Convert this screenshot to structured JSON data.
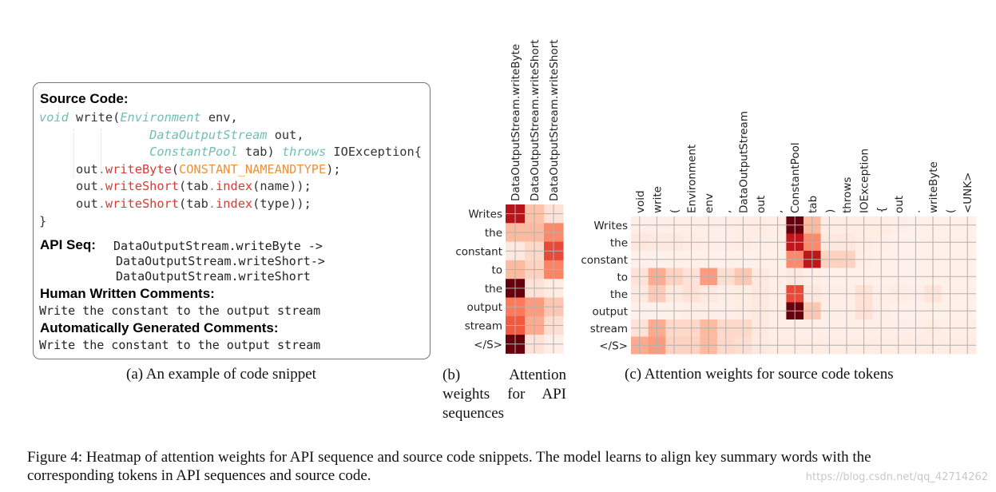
{
  "panel_a": {
    "source_code_label": "Source Code:",
    "code_lines": [
      [
        [
          "void",
          "kw"
        ],
        [
          " write(",
          "plain"
        ],
        [
          "Environment",
          "kw"
        ],
        [
          " env,",
          "plain"
        ]
      ],
      [
        [
          "               ",
          "plain"
        ],
        [
          "DataOutputStream",
          "kw"
        ],
        [
          " out,",
          "plain"
        ]
      ],
      [
        [
          "               ",
          "plain"
        ],
        [
          "ConstantPool",
          "kw"
        ],
        [
          " tab) ",
          "plain"
        ],
        [
          "throws",
          "kw"
        ],
        [
          " IOException{",
          "plain"
        ]
      ],
      [
        [
          "     out",
          "plain"
        ],
        [
          ".",
          "p"
        ],
        [
          "writeByte",
          "m"
        ],
        [
          "(",
          "plain"
        ],
        [
          "CONSTANT_NAMEANDTYPE",
          "c"
        ],
        [
          ");",
          "plain"
        ]
      ],
      [
        [
          "     out",
          "plain"
        ],
        [
          ".",
          "p"
        ],
        [
          "writeShort",
          "m"
        ],
        [
          "(tab",
          "plain"
        ],
        [
          ".",
          "p"
        ],
        [
          "index",
          "m"
        ],
        [
          "(name));",
          "plain"
        ]
      ],
      [
        [
          "     out",
          "plain"
        ],
        [
          ".",
          "p"
        ],
        [
          "writeShort",
          "m"
        ],
        [
          "(tab",
          "plain"
        ],
        [
          ".",
          "p"
        ],
        [
          "index",
          "m"
        ],
        [
          "(type));",
          "plain"
        ]
      ],
      [
        [
          "}",
          "plain"
        ]
      ]
    ],
    "api_seq_label": "API Seq:",
    "api_seq_lines": [
      "DataOutputStream.writeByte ->",
      "DataOutputStream.writeShort->",
      "DataOutputStream.writeShort"
    ],
    "human_label": "Human Written Comments:",
    "human_comment": "Write the constant to the output stream",
    "auto_label": "Automatically Generated Comments:",
    "auto_comment": "Write the constant to the output stream",
    "caption": "(a)  An example of code snippet"
  },
  "chart_data": [
    {
      "type": "heatmap",
      "caption": "(b)  Attention weights for API sequences",
      "x": [
        "DataOutputStream.writeByte",
        "DataOutputStream.writeShort",
        "DataOutputStream.writeShort"
      ],
      "y": [
        "Writes",
        "the",
        "constant",
        "to",
        "the",
        "output",
        "stream",
        "</S>"
      ],
      "values": [
        [
          0.8,
          0.22,
          0.08
        ],
        [
          0.25,
          0.25,
          0.4
        ],
        [
          0.05,
          0.12,
          0.6
        ],
        [
          0.25,
          0.15,
          0.42
        ],
        [
          1.0,
          0.08,
          0.04
        ],
        [
          0.45,
          0.35,
          0.2
        ],
        [
          0.55,
          0.3,
          0.1
        ],
        [
          1.0,
          0.08,
          0.03
        ]
      ],
      "colormap": "Reds"
    },
    {
      "type": "heatmap",
      "caption": "(c)  Attention weights for source code tokens",
      "x": [
        "void",
        "write",
        "(",
        "Environment",
        "env",
        ",",
        "DataOutputStream",
        "out",
        ",",
        "ConstantPool",
        "tab",
        ")",
        "throws",
        "IOException",
        "{",
        "out",
        ".",
        "writeByte",
        "(",
        "<UNK>"
      ],
      "y": [
        "Writes",
        "the",
        "constant",
        "to",
        "the",
        "output",
        "stream",
        "</S>"
      ],
      "values": [
        [
          0.03,
          0.03,
          0.03,
          0.03,
          0.03,
          0.03,
          0.04,
          0.04,
          0.03,
          1.0,
          0.25,
          0.04,
          0.04,
          0.04,
          0.04,
          0.03,
          0.02,
          0.02,
          0.02,
          0.02
        ],
        [
          0.06,
          0.05,
          0.05,
          0.04,
          0.03,
          0.03,
          0.04,
          0.03,
          0.03,
          0.78,
          0.4,
          0.06,
          0.06,
          0.04,
          0.03,
          0.02,
          0.02,
          0.02,
          0.02,
          0.02
        ],
        [
          0.02,
          0.02,
          0.02,
          0.02,
          0.02,
          0.02,
          0.02,
          0.02,
          0.02,
          0.4,
          0.78,
          0.15,
          0.15,
          0.03,
          0.02,
          0.02,
          0.02,
          0.02,
          0.02,
          0.02
        ],
        [
          0.08,
          0.3,
          0.15,
          0.08,
          0.35,
          0.1,
          0.2,
          0.05,
          0.03,
          0.05,
          0.03,
          0.02,
          0.02,
          0.02,
          0.02,
          0.02,
          0.02,
          0.02,
          0.02,
          0.02
        ],
        [
          0.05,
          0.18,
          0.05,
          0.08,
          0.05,
          0.03,
          0.04,
          0.06,
          0.03,
          0.6,
          0.06,
          0.03,
          0.03,
          0.08,
          0.03,
          0.04,
          0.03,
          0.07,
          0.02,
          0.02
        ],
        [
          0.02,
          0.02,
          0.02,
          0.03,
          0.03,
          0.03,
          0.04,
          0.05,
          0.03,
          1.0,
          0.2,
          0.03,
          0.03,
          0.08,
          0.03,
          0.02,
          0.02,
          0.02,
          0.02,
          0.02
        ],
        [
          0.08,
          0.3,
          0.12,
          0.12,
          0.25,
          0.12,
          0.12,
          0.05,
          0.03,
          0.03,
          0.03,
          0.03,
          0.03,
          0.03,
          0.03,
          0.03,
          0.03,
          0.04,
          0.03,
          0.03
        ],
        [
          0.3,
          0.35,
          0.15,
          0.15,
          0.25,
          0.12,
          0.1,
          0.05,
          0.04,
          0.04,
          0.04,
          0.04,
          0.04,
          0.04,
          0.04,
          0.04,
          0.04,
          0.04,
          0.04,
          0.04
        ]
      ],
      "colormap": "Reds"
    }
  ],
  "figure_caption": {
    "line1": "Figure 4: Heatmap of attention weights for API sequence and source code snippets. The model learns to align key summary words with the",
    "line2": "corresponding tokens in API sequences and source code."
  },
  "watermark": "https://blog.csdn.net/qq_42714262"
}
